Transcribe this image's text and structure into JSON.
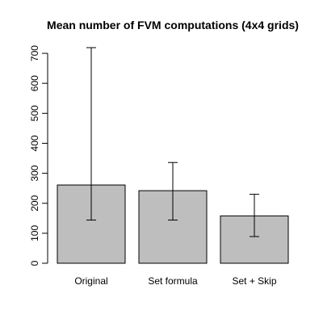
{
  "chart_data": {
    "type": "bar",
    "title": "Mean number of FVM computations (4x4 grids)",
    "xlabel": "",
    "ylabel": "",
    "categories": [
      "Original",
      "Set formula",
      "Set + Skip"
    ],
    "values": [
      261,
      242,
      158
    ],
    "error_low": [
      144,
      144,
      89
    ],
    "error_high": [
      719,
      336,
      230
    ],
    "yticks": [
      0,
      100,
      200,
      300,
      400,
      500,
      600,
      700
    ],
    "ylim": [
      0,
      700
    ],
    "bar_color": "#bebebe",
    "grid": false,
    "legend": "none"
  }
}
